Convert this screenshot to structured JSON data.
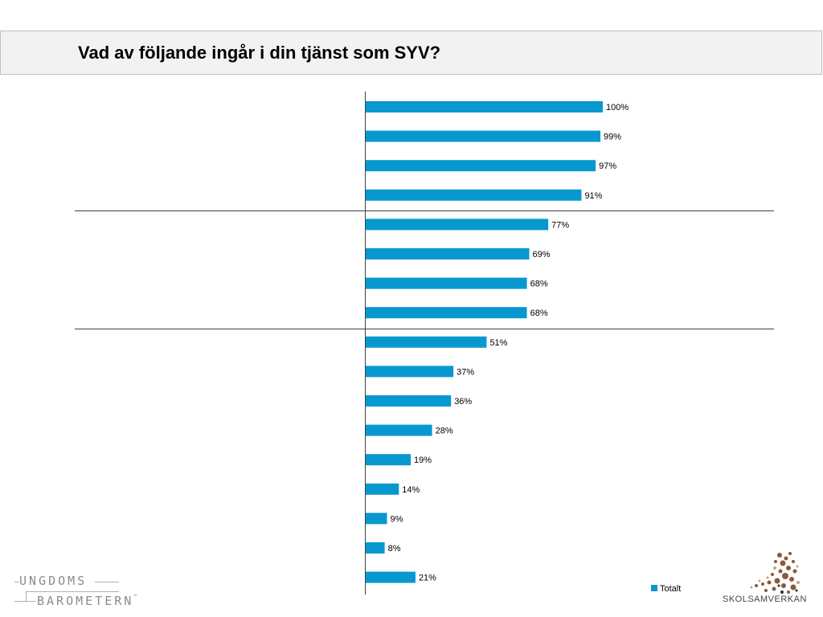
{
  "title": "Vad av följande ingår i din tjänst som SYV?",
  "colors": {
    "bar": "#0898d0",
    "axis": "#404040",
    "divider": "#404040"
  },
  "chart_data": {
    "type": "bar",
    "orientation": "horizontal",
    "categories": [
      "",
      "",
      "",
      "",
      "",
      "",
      "",
      "",
      "",
      "",
      "",
      "",
      "",
      "",
      "",
      "",
      ""
    ],
    "series": [
      {
        "name": "Totalt",
        "values": [
          100,
          99,
          97,
          91,
          77,
          69,
          68,
          68,
          51,
          37,
          36,
          28,
          19,
          14,
          9,
          8,
          21
        ]
      }
    ],
    "data_labels": [
      "100%",
      "99%",
      "97%",
      "91%",
      "77%",
      "69%",
      "68%",
      "68%",
      "51%",
      "37%",
      "36%",
      "28%",
      "19%",
      "14%",
      "9%",
      "8%",
      "21%"
    ],
    "xlim": [
      0,
      100
    ],
    "group_dividers_after_index": [
      3,
      7
    ],
    "legend": {
      "position": "bottom-right",
      "label": "Totalt"
    }
  },
  "logos": {
    "left": {
      "line1": "UNGDOMS",
      "line2": "BAROMETERN",
      "tm": "™"
    },
    "right": {
      "text": "SKOLSAMVERKAN"
    }
  }
}
